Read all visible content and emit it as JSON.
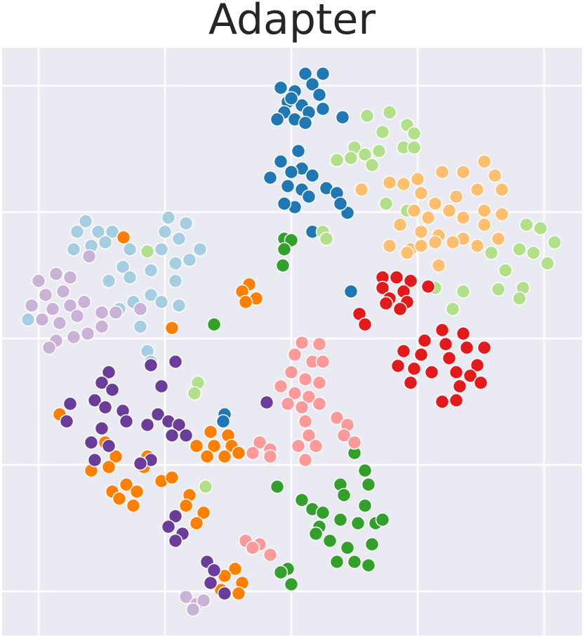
{
  "chart_data": {
    "type": "scatter",
    "title": "Adapter",
    "xlim": [
      3,
      829
    ],
    "ylim": [
      0,
      837
    ],
    "xticks": [
      55,
      235,
      415,
      595,
      775
    ],
    "yticks": [
      63,
      243,
      423,
      603,
      783
    ],
    "grid": true,
    "series": [
      {
        "color": "#1f78b4",
        "x": [
          435,
          460,
          445,
          400,
          420,
          455,
          410,
          430,
          405,
          440,
          460,
          395,
          420,
          435,
          415,
          488,
          425,
          400,
          430,
          415,
          445,
          385,
          410,
          430,
          440,
          420,
          405,
          465,
          480,
          495,
          485,
          445,
          500,
          320,
          318
        ],
        "values": [
          800,
          800,
          785,
          780,
          775,
          770,
          760,
          755,
          745,
          745,
          750,
          735,
          735,
          730,
          765,
          738,
          690,
          675,
          665,
          660,
          655,
          652,
          640,
          635,
          625,
          610,
          615,
          637,
          630,
          602,
          615,
          575,
          490,
          315,
          305
        ]
      },
      {
        "color": "#b2df8a",
        "x": [
          523,
          555,
          580,
          590,
          545,
          505,
          520,
          540,
          575,
          590,
          480,
          500,
          530,
          460,
          465,
          210,
          550,
          580,
          750,
          770,
          790,
          740,
          760,
          780,
          700,
          720,
          710,
          745,
          740,
          660,
          645,
          620,
          282,
          277,
          293
        ],
        "values": [
          740,
          745,
          727,
          715,
          717,
          695,
          685,
          690,
          695,
          695,
          677,
          680,
          670,
          575,
          565,
          547,
          615,
          605,
          585,
          580,
          560,
          550,
          545,
          530,
          545,
          520,
          493,
          495,
          480,
          490,
          465,
          495,
          360,
          345,
          212
        ]
      },
      {
        "color": "#fdbf6f",
        "x": [
          515,
          555,
          575,
          595,
          630,
          660,
          690,
          705,
          715,
          600,
          620,
          650,
          680,
          590,
          610,
          640,
          660,
          690,
          715,
          570,
          600,
          625,
          660,
          690,
          555,
          585,
          620,
          645,
          710,
          680,
          625,
          580,
          600
        ],
        "values": [
          635,
          645,
          643,
          650,
          660,
          660,
          675,
          655,
          635,
          630,
          615,
          625,
          635,
          605,
          595,
          605,
          595,
          605,
          600,
          585,
          575,
          570,
          565,
          585,
          555,
          550,
          560,
          560,
          565,
          555,
          527,
          545,
          555
        ]
      },
      {
        "color": "#a6cee3",
        "x": [
          122,
          110,
          140,
          160,
          105,
          130,
          150,
          185,
          240,
          265,
          235,
          255,
          285,
          230,
          250,
          270,
          175,
          155,
          185,
          215,
          250,
          215,
          190,
          230,
          255,
          200,
          170,
          40,
          210,
          215
        ],
        "values": [
          590,
          575,
          575,
          575,
          550,
          555,
          560,
          550,
          595,
          587,
          575,
          565,
          550,
          550,
          530,
          535,
          525,
          505,
          510,
          520,
          505,
          485,
          475,
          475,
          470,
          440,
          465,
          450,
          405,
          390
        ]
      },
      {
        "color": "#cab2d6",
        "x": [
          55,
          80,
          100,
          65,
          90,
          45,
          75,
          100,
          120,
          60,
          85,
          110,
          145,
          165,
          145,
          125,
          105,
          80,
          70,
          200,
          127,
          265,
          280,
          290,
          275
        ],
        "values": [
          505,
          515,
          510,
          485,
          490,
          470,
          465,
          470,
          475,
          450,
          445,
          455,
          460,
          460,
          440,
          430,
          425,
          420,
          410,
          465,
          540,
          55,
          45,
          50,
          37
        ]
      },
      {
        "color": "#ff7f00",
        "x": [
          176,
          355,
          345,
          365,
          350,
          245,
          85,
          300,
          325,
          280,
          305,
          330,
          295,
          320,
          340,
          150,
          165,
          130,
          155,
          210,
          205,
          160,
          180,
          195,
          170,
          190,
          230,
          245,
          270,
          265,
          290,
          280,
          335,
          320,
          345,
          340,
          315
        ],
        "values": [
          567,
          500,
          490,
          480,
          475,
          438,
          315,
          290,
          285,
          270,
          270,
          270,
          255,
          255,
          260,
          275,
          255,
          235,
          240,
          255,
          240,
          205,
          215,
          205,
          195,
          185,
          220,
          225,
          200,
          185,
          175,
          160,
          95,
          85,
          75,
          60,
          65
        ]
      },
      {
        "color": "#33a02c",
        "x": [
          405,
          415,
          405,
          403,
          305,
          505,
          395,
          520,
          525,
          520,
          485,
          490,
          430,
          445,
          460,
          455,
          485,
          470,
          495,
          510,
          535,
          545,
          530,
          480,
          505,
          525,
          450,
          410,
          400,
          415
        ],
        "values": [
          565,
          563,
          550,
          527,
          443,
          260,
          212,
          235,
          215,
          185,
          215,
          200,
          193,
          180,
          175,
          155,
          165,
          135,
          125,
          160,
          160,
          165,
          130,
          105,
          105,
          100,
          145,
          95,
          90,
          73
        ]
      },
      {
        "color": "#e31a1c",
        "x": [
          545,
          565,
          585,
          610,
          545,
          575,
          555,
          580,
          550,
          570,
          512,
          520,
          630,
          660,
          605,
          635,
          665,
          690,
          575,
          600,
          640,
          680,
          590,
          615,
          650,
          670,
          585,
          655,
          685,
          630,
          650,
          567
        ],
        "values": [
          510,
          510,
          505,
          497,
          495,
          490,
          480,
          475,
          473,
          465,
          458,
          443,
          435,
          430,
          420,
          415,
          410,
          410,
          405,
          400,
          395,
          385,
          380,
          375,
          375,
          370,
          360,
          355,
          360,
          333,
          335,
          384
        ]
      },
      {
        "color": "#fb9a99",
        "x": [
          430,
          455,
          420,
          445,
          460,
          415,
          435,
          455,
          400,
          420,
          440,
          410,
          430,
          455,
          435,
          440,
          425,
          450,
          435,
          480,
          495,
          490,
          505,
          370,
          385,
          360,
          385,
          350,
          370,
          385,
          360
        ],
        "values": [
          417,
          415,
          400,
          390,
          390,
          375,
          365,
          360,
          355,
          345,
          340,
          330,
          325,
          330,
          305,
          285,
          270,
          270,
          250,
          310,
          300,
          285,
          275,
          275,
          265,
          260,
          255,
          135,
          130,
          115,
          125
        ]
      },
      {
        "color": "#6a3d9a",
        "x": [
          155,
          145,
          160,
          135,
          150,
          175,
          100,
          95,
          180,
          215,
          250,
          230,
          225,
          210,
          240,
          255,
          145,
          130,
          155,
          135,
          245,
          265,
          215,
          200,
          380,
          250,
          240,
          260,
          250,
          295,
          300,
          320,
          305
        ],
        "values": [
          375,
          360,
          350,
          335,
          325,
          320,
          330,
          305,
          305,
          385,
          390,
          355,
          315,
          300,
          305,
          300,
          295,
          275,
          270,
          250,
          285,
          285,
          250,
          245,
          332,
          170,
          155,
          145,
          135,
          105,
          75,
          60,
          93
        ]
      }
    ]
  }
}
